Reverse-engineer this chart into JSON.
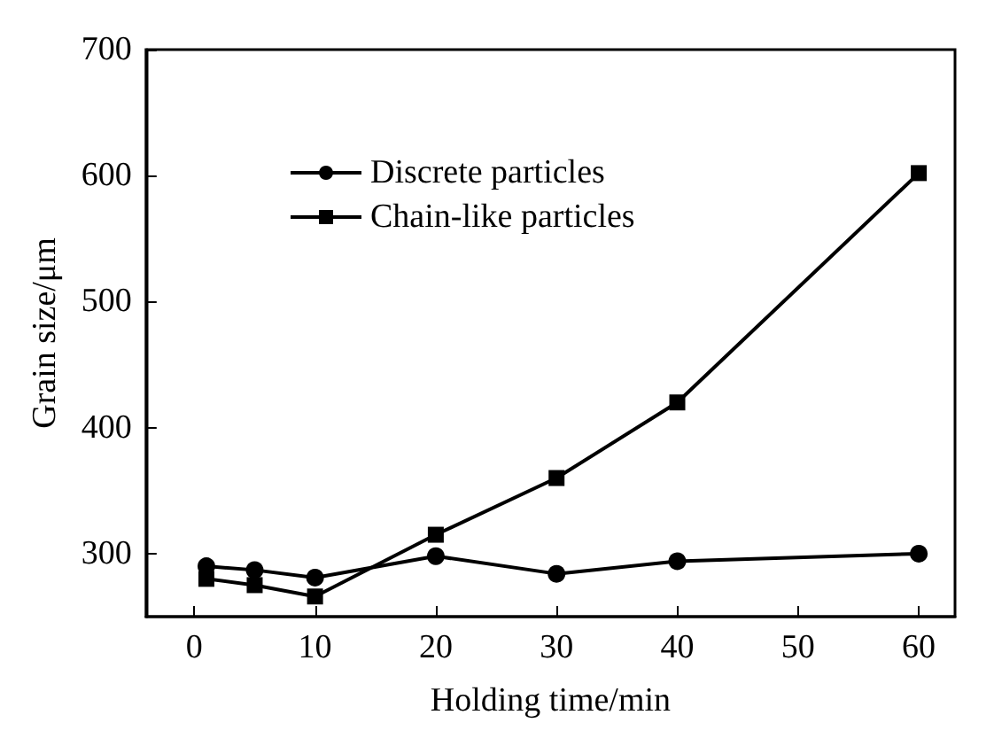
{
  "chart_data": {
    "type": "line",
    "xlabel": "Holding time/min",
    "ylabel": "Grain size/μm",
    "xlim": [
      -4,
      63
    ],
    "xticks": [
      0,
      10,
      20,
      30,
      40,
      50,
      60
    ],
    "ylim": [
      250,
      700
    ],
    "yticks": [
      300,
      400,
      500,
      600,
      700
    ],
    "grid": false,
    "legend": "top left",
    "line_style": "solid",
    "series": [
      {
        "name": "Discrete particles",
        "color": "#000000",
        "marker": "circle",
        "x": [
          1,
          5,
          10,
          20,
          30,
          40,
          60
        ],
        "values": [
          290,
          287,
          281,
          298,
          284,
          294,
          300
        ]
      },
      {
        "name": "Chain-like particles",
        "color": "#000000",
        "marker": "square",
        "x": [
          1,
          5,
          10,
          20,
          30,
          40,
          60
        ],
        "values": [
          280,
          275,
          266,
          315,
          360,
          420,
          602
        ]
      }
    ]
  }
}
